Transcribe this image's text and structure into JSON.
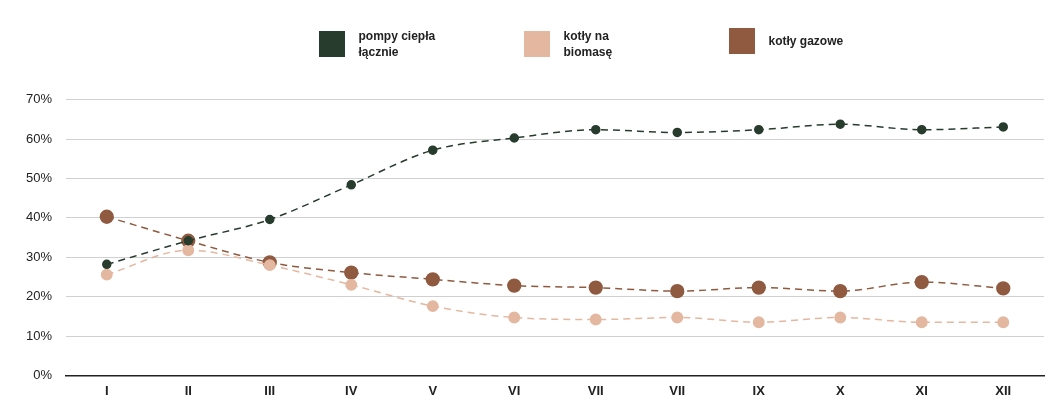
{
  "chart_data": {
    "type": "line",
    "categories": [
      "I",
      "II",
      "III",
      "IV",
      "V",
      "VI",
      "VII",
      "VII",
      "IX",
      "X",
      "XI",
      "XII"
    ],
    "series": [
      {
        "name": "pompy ciepła łącznie",
        "color": "#283c2e",
        "values": [
          28.2,
          34.2,
          39.6,
          48.4,
          57.2,
          60.3,
          62.4,
          61.7,
          62.4,
          63.8,
          62.4,
          63.1
        ]
      },
      {
        "name": "kotły na biomasę",
        "color": "#e3b7a0",
        "values": [
          25.6,
          31.8,
          28.0,
          23.0,
          17.6,
          14.7,
          14.2,
          14.7,
          13.5,
          14.7,
          13.5,
          13.5
        ]
      },
      {
        "name": "kotły gazowe",
        "color": "#8f5a40",
        "values": [
          40.3,
          34.2,
          28.7,
          26.1,
          24.4,
          22.8,
          22.3,
          21.4,
          22.3,
          21.4,
          23.7,
          22.1
        ]
      }
    ],
    "ylim": [
      0,
      70
    ],
    "yticks": [
      {
        "value": 0,
        "label": "0%"
      },
      {
        "value": 10,
        "label": "10%"
      },
      {
        "value": 20,
        "label": "20%"
      },
      {
        "value": 30,
        "label": "30%"
      },
      {
        "value": 40,
        "label": "40%"
      },
      {
        "value": 50,
        "label": "50%"
      },
      {
        "value": 60,
        "label": "60%"
      },
      {
        "value": 70,
        "label": "70%"
      }
    ],
    "grid": "y",
    "legend": "top",
    "marker": "circle",
    "line_style": "dashed"
  }
}
